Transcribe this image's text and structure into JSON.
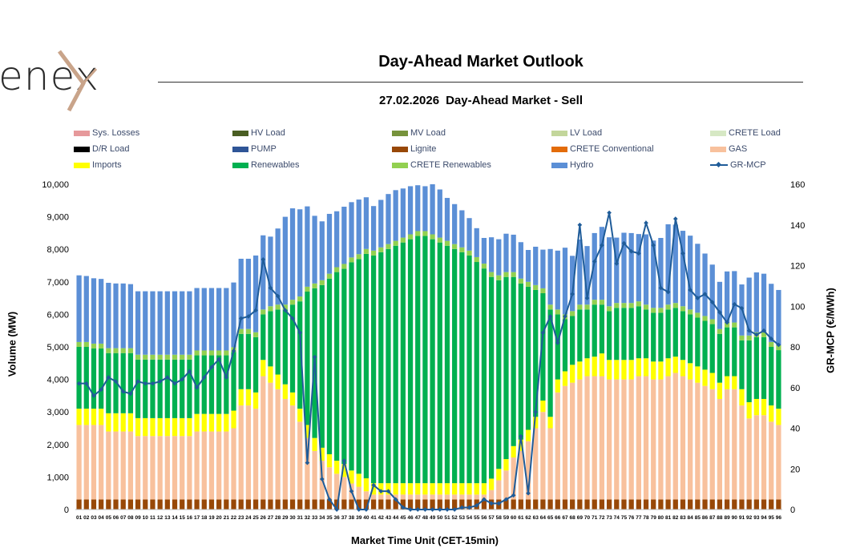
{
  "header": {
    "logo_text": "enex",
    "title": "Day-Ahead Market Outlook",
    "date": "27.02.2026",
    "subtitle": "Day-Ahead Market - Sell"
  },
  "chart_data": {
    "type": "bar",
    "title": "27.02.2026  Day-Ahead Market - Sell",
    "xlabel": "Market Time Unit (CET-15min)",
    "ylabel": "Volume (MW)",
    "y2label": "GR-MCP (€/MWh)",
    "ylim": [
      0,
      10000
    ],
    "y2lim": [
      0,
      160
    ],
    "yticks": [
      "0",
      "1,000",
      "2,000",
      "3,000",
      "4,000",
      "5,000",
      "6,000",
      "7,000",
      "8,000",
      "9,000",
      "10,000"
    ],
    "y2ticks": [
      "0",
      "20",
      "40",
      "60",
      "80",
      "100",
      "120",
      "140",
      "160"
    ],
    "categories": [
      "01",
      "02",
      "03",
      "04",
      "05",
      "06",
      "07",
      "08",
      "09",
      "10",
      "11",
      "12",
      "13",
      "14",
      "15",
      "16",
      "17",
      "18",
      "19",
      "20",
      "21",
      "22",
      "23",
      "24",
      "25",
      "26",
      "27",
      "28",
      "29",
      "30",
      "31",
      "32",
      "33",
      "34",
      "35",
      "36",
      "37",
      "38",
      "39",
      "40",
      "41",
      "42",
      "43",
      "44",
      "45",
      "46",
      "47",
      "48",
      "49",
      "50",
      "51",
      "52",
      "53",
      "54",
      "55",
      "56",
      "57",
      "58",
      "59",
      "60",
      "61",
      "62",
      "63",
      "64",
      "65",
      "66",
      "67",
      "68",
      "69",
      "70",
      "71",
      "72",
      "73",
      "74",
      "75",
      "76",
      "77",
      "78",
      "79",
      "80",
      "81",
      "82",
      "83",
      "84",
      "85",
      "86",
      "87",
      "88",
      "89",
      "90",
      "91",
      "92",
      "93",
      "94",
      "95",
      "96"
    ],
    "legend": [
      {
        "name": "Sys. Losses",
        "color": "#e6999b"
      },
      {
        "name": "HV Load",
        "color": "#4a5e23"
      },
      {
        "name": "MV Load",
        "color": "#77933c"
      },
      {
        "name": "LV Load",
        "color": "#c3d69b"
      },
      {
        "name": "CRETE Load",
        "color": "#d6e8c4"
      },
      {
        "name": "D/R Load",
        "color": "#000000"
      },
      {
        "name": "PUMP",
        "color": "#2f5597"
      },
      {
        "name": "Lignite",
        "color": "#984807"
      },
      {
        "name": "CRETE Conventional",
        "color": "#e36c0a"
      },
      {
        "name": "GAS",
        "color": "#f8c19d"
      },
      {
        "name": "Imports",
        "color": "#ffff00"
      },
      {
        "name": "Renewables",
        "color": "#00b050"
      },
      {
        "name": "CRETE Renewables",
        "color": "#92d050"
      },
      {
        "name": "Hydro",
        "color": "#5b8fd6"
      },
      {
        "name": "GR-MCP",
        "color": "#1f5c99"
      }
    ],
    "series": [
      {
        "name": "Lignite",
        "color": "#984807",
        "values": [
          310,
          310,
          310,
          310,
          310,
          310,
          310,
          310,
          310,
          310,
          310,
          310,
          310,
          310,
          310,
          310,
          310,
          310,
          310,
          310,
          310,
          310,
          310,
          310,
          310,
          310,
          310,
          310,
          310,
          310,
          310,
          310,
          310,
          310,
          310,
          310,
          310,
          310,
          310,
          310,
          310,
          310,
          310,
          310,
          310,
          310,
          310,
          310,
          310,
          310,
          310,
          310,
          310,
          310,
          310,
          310,
          310,
          310,
          310,
          310,
          310,
          310,
          310,
          310,
          310,
          310,
          310,
          310,
          310,
          310,
          310,
          310,
          310,
          310,
          310,
          310,
          310,
          310,
          310,
          310,
          310,
          310,
          310,
          310,
          310,
          310,
          310,
          310,
          310,
          310,
          310,
          310,
          310,
          310,
          310,
          310
        ]
      },
      {
        "name": "GAS",
        "color": "#f8c19d",
        "values": [
          2290,
          2290,
          2290,
          2290,
          2090,
          2090,
          2090,
          2090,
          1950,
          1950,
          1950,
          1950,
          1950,
          1950,
          1950,
          1950,
          2090,
          2090,
          2090,
          2090,
          2090,
          2190,
          2890,
          2890,
          2790,
          3790,
          3590,
          3390,
          3090,
          2890,
          2390,
          1890,
          1490,
          1190,
          990,
          790,
          690,
          490,
          390,
          250,
          150,
          150,
          150,
          150,
          150,
          150,
          150,
          150,
          150,
          150,
          150,
          150,
          150,
          150,
          150,
          150,
          290,
          590,
          890,
          1290,
          1490,
          1790,
          2190,
          2690,
          2190,
          3290,
          3490,
          3590,
          3690,
          3790,
          3790,
          3790,
          3690,
          3690,
          3690,
          3690,
          3790,
          3790,
          3690,
          3690,
          3790,
          3890,
          3790,
          3690,
          3590,
          3490,
          3390,
          3090,
          3390,
          3390,
          2890,
          2490,
          2590,
          2590,
          2390,
          2290
        ]
      },
      {
        "name": "Imports",
        "color": "#ffff00",
        "values": [
          500,
          500,
          500,
          500,
          560,
          560,
          560,
          560,
          550,
          550,
          550,
          550,
          550,
          550,
          550,
          550,
          540,
          540,
          540,
          540,
          540,
          540,
          500,
          500,
          500,
          500,
          500,
          450,
          450,
          400,
          400,
          400,
          400,
          400,
          400,
          400,
          400,
          400,
          400,
          400,
          350,
          350,
          350,
          350,
          350,
          350,
          350,
          350,
          350,
          350,
          350,
          350,
          350,
          350,
          350,
          350,
          350,
          350,
          350,
          350,
          350,
          350,
          350,
          350,
          350,
          400,
          450,
          550,
          550,
          550,
          600,
          700,
          600,
          600,
          600,
          600,
          550,
          550,
          550,
          550,
          550,
          500,
          500,
          500,
          500,
          500,
          500,
          500,
          400,
          400,
          500,
          500,
          500,
          500,
          500,
          500
        ]
      },
      {
        "name": "Renewables",
        "color": "#00b050",
        "values": [
          1900,
          1900,
          1850,
          1850,
          1850,
          1850,
          1850,
          1850,
          1800,
          1800,
          1800,
          1800,
          1800,
          1800,
          1800,
          1800,
          1800,
          1800,
          1800,
          1800,
          1800,
          1800,
          1700,
          1700,
          1700,
          1400,
          1700,
          2000,
          2300,
          2700,
          3300,
          4100,
          4600,
          5000,
          5400,
          5800,
          6000,
          6400,
          6600,
          6900,
          7000,
          7100,
          7200,
          7300,
          7400,
          7500,
          7600,
          7600,
          7500,
          7400,
          7300,
          7200,
          7100,
          7000,
          6800,
          6600,
          6200,
          5800,
          5600,
          5200,
          4800,
          4400,
          3900,
          3300,
          3300,
          2000,
          1600,
          1500,
          1600,
          1500,
          1600,
          1500,
          1500,
          1600,
          1600,
          1600,
          1600,
          1500,
          1500,
          1500,
          1500,
          1500,
          1500,
          1500,
          1500,
          1500,
          1500,
          1500,
          1500,
          1500,
          1500,
          1900,
          1900,
          1900,
          1800,
          1800
        ]
      },
      {
        "name": "CRETE Renewables",
        "color": "#92d050",
        "values": [
          150,
          150,
          150,
          150,
          150,
          150,
          150,
          150,
          150,
          150,
          150,
          150,
          150,
          150,
          150,
          150,
          150,
          150,
          150,
          150,
          150,
          150,
          150,
          150,
          150,
          150,
          150,
          150,
          150,
          150,
          150,
          150,
          150,
          150,
          150,
          150,
          150,
          150,
          150,
          150,
          150,
          150,
          150,
          150,
          150,
          150,
          150,
          150,
          150,
          150,
          150,
          150,
          150,
          150,
          150,
          150,
          150,
          150,
          150,
          150,
          150,
          150,
          150,
          150,
          150,
          150,
          150,
          150,
          150,
          150,
          150,
          150,
          150,
          150,
          150,
          150,
          150,
          150,
          150,
          150,
          150,
          150,
          150,
          150,
          150,
          150,
          150,
          150,
          150,
          150,
          150,
          150,
          150,
          150,
          150,
          150
        ]
      },
      {
        "name": "Hydro",
        "color": "#5b8fd6",
        "values": [
          2050,
          2030,
          2010,
          1990,
          2010,
          1990,
          1990,
          1970,
          1950,
          1950,
          1950,
          1950,
          1950,
          1950,
          1950,
          1950,
          1920,
          1920,
          1920,
          1920,
          1920,
          1990,
          2160,
          2160,
          2360,
          2280,
          2140,
          2340,
          2700,
          2810,
          2680,
          2470,
          2080,
          1810,
          1840,
          1720,
          1760,
          1700,
          1680,
          1590,
          1370,
          1460,
          1540,
          1560,
          1510,
          1480,
          1410,
          1380,
          1540,
          1480,
          1320,
          1230,
          1140,
          1000,
          890,
          790,
          1070,
          1110,
          1180,
          1150,
          1120,
          980,
          1180,
          1190,
          1710,
          1810,
          2050,
          1700,
          2000,
          1800,
          2050,
          2240,
          2120,
          2010,
          2160,
          2150,
          2070,
          2160,
          2070,
          2150,
          2470,
          2410,
          2320,
          2270,
          2120,
          1920,
          1680,
          1450,
          1570,
          1580,
          1570,
          1780,
          1840,
          1800,
          1790,
          1700
        ]
      }
    ],
    "mcp": {
      "name": "GR-MCP",
      "color": "#1f5c99",
      "values": [
        62,
        62,
        56,
        59,
        65,
        63,
        58,
        57,
        63,
        62,
        62,
        63,
        65,
        62,
        64,
        68,
        60,
        65,
        70,
        74,
        65,
        78,
        94,
        95,
        98,
        123,
        109,
        105,
        98,
        94,
        87,
        23,
        75,
        15,
        5,
        0,
        24,
        9,
        0,
        0,
        12,
        9,
        9,
        5,
        1,
        0,
        0,
        0,
        0,
        0,
        0,
        0,
        1,
        1,
        2,
        5,
        3,
        3,
        5,
        7,
        36,
        8,
        48,
        87,
        95,
        82,
        95,
        106,
        140,
        104,
        122,
        130,
        146,
        121,
        131,
        127,
        126,
        141,
        130,
        109,
        107,
        143,
        126,
        108,
        104,
        106,
        102,
        97,
        92,
        101,
        99,
        88,
        86,
        88,
        84,
        81
      ]
    }
  }
}
